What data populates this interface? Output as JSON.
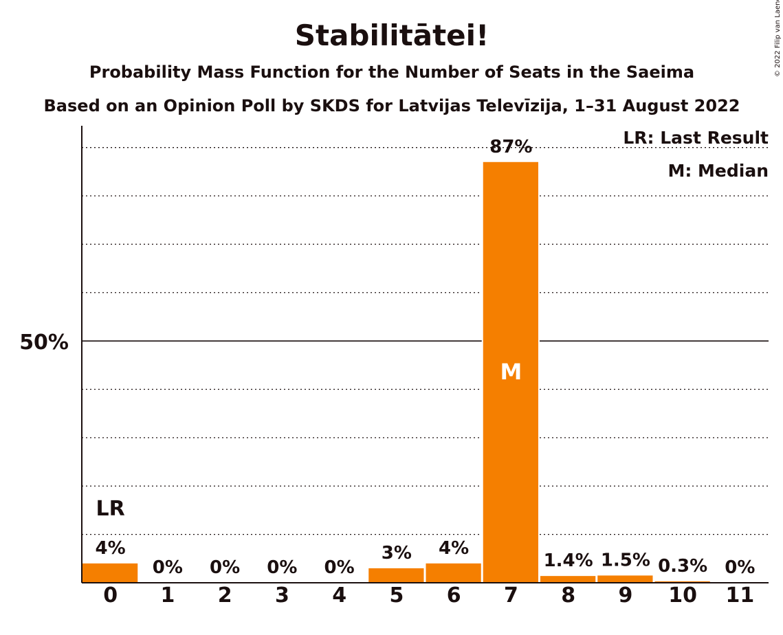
{
  "chart_data": {
    "type": "bar",
    "title": "Stabilitātei!",
    "subtitle": "Probability Mass Function for the Number of Seats in the Saeima",
    "subtitle2": "Based on an Opinion Poll by SKDS for Latvijas Televīzija, 1–31 August 2022",
    "copyright": "© 2022 Filip van Laenen",
    "categories": [
      "0",
      "1",
      "2",
      "3",
      "4",
      "5",
      "6",
      "7",
      "8",
      "9",
      "10",
      "11"
    ],
    "values": [
      4,
      0,
      0,
      0,
      0,
      3,
      4,
      87,
      1.4,
      1.5,
      0.3,
      0
    ],
    "value_labels": [
      "4%",
      "0%",
      "0%",
      "0%",
      "0%",
      "3%",
      "4%",
      "87%",
      "1.4%",
      "1.5%",
      "0.3%",
      "0%"
    ],
    "ylim": [
      0,
      94.5
    ],
    "y_tick_label": "50%",
    "y_tick_value": 50,
    "grid": true,
    "grid_step": 10,
    "last_result_index": 0,
    "last_result_label": "LR",
    "median_index": 7,
    "median_label": "M",
    "legend": [
      "LR: Last Result",
      "M: Median"
    ],
    "legend_position": "top-right",
    "bar_color": "#f57f00"
  }
}
